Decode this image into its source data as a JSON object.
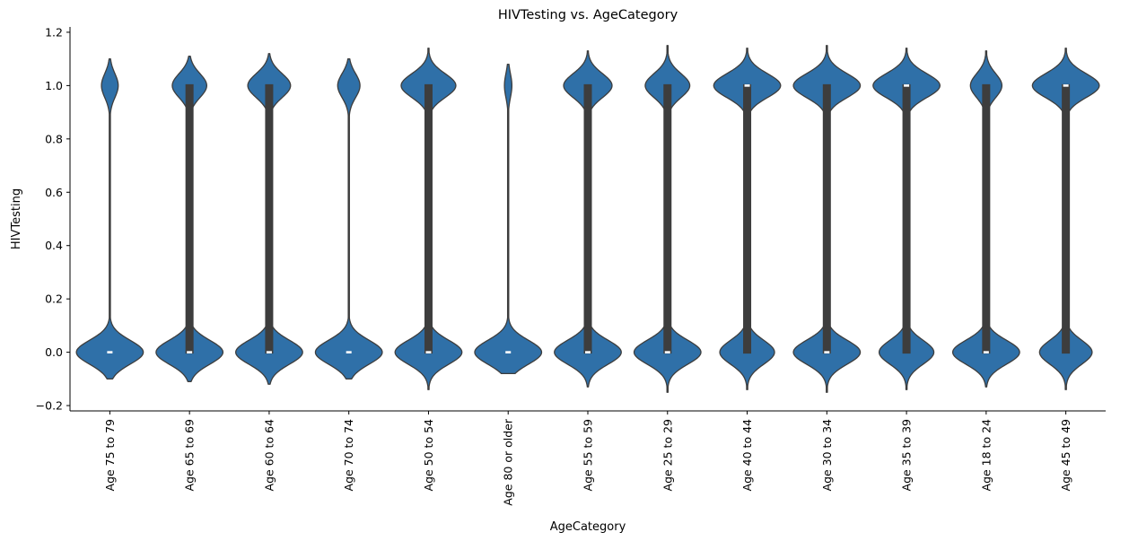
{
  "chart_data": {
    "type": "violin",
    "title": "HIVTesting vs. AgeCategory",
    "xlabel": "AgeCategory",
    "ylabel": "HIVTesting",
    "ylim": [
      -0.22,
      1.22
    ],
    "yticks": [
      -0.2,
      0.0,
      0.2,
      0.4,
      0.6,
      0.8,
      1.0,
      1.2
    ],
    "ytick_labels": [
      "−0.2",
      "0.0",
      "0.2",
      "0.4",
      "0.6",
      "0.8",
      "1.0",
      "1.2"
    ],
    "grid": false,
    "legend": "none",
    "colors": {
      "violin_fill": "#2f70a8",
      "violin_edge": "#3d3d3d",
      "box": "#3d3d3d",
      "median": "#ffffff",
      "axis": "#000000"
    },
    "categories": [
      "Age 75 to 79",
      "Age 65 to 69",
      "Age 60 to 64",
      "Age 70 to 74",
      "Age 50 to 54",
      "Age 80 or older",
      "Age 55 to 59",
      "Age 25 to 29",
      "Age 40 to 44",
      "Age 30 to 34",
      "Age 35 to 39",
      "Age 18 to 24",
      "Age 45 to 49"
    ],
    "series": [
      {
        "category": "Age 75 to 79",
        "p_yes": 0.2,
        "y_min": -0.1,
        "y_max": 1.1,
        "q1": 0,
        "median": 0,
        "q3": 0
      },
      {
        "category": "Age 65 to 69",
        "p_yes": 0.34,
        "y_min": -0.11,
        "y_max": 1.11,
        "q1": 0,
        "median": 0,
        "q3": 1
      },
      {
        "category": "Age 60 to 64",
        "p_yes": 0.39,
        "y_min": -0.12,
        "y_max": 1.12,
        "q1": 0,
        "median": 0,
        "q3": 1
      },
      {
        "category": "Age 70 to 74",
        "p_yes": 0.25,
        "y_min": -0.1,
        "y_max": 1.1,
        "q1": 0,
        "median": 0,
        "q3": 0
      },
      {
        "category": "Age 50 to 54",
        "p_yes": 0.45,
        "y_min": -0.14,
        "y_max": 1.14,
        "q1": 0,
        "median": 0,
        "q3": 1
      },
      {
        "category": "Age 80 or older",
        "p_yes": 0.1,
        "y_min": -0.08,
        "y_max": 1.08,
        "q1": 0,
        "median": 0,
        "q3": 0
      },
      {
        "category": "Age 55 to 59",
        "p_yes": 0.42,
        "y_min": -0.13,
        "y_max": 1.13,
        "q1": 0,
        "median": 0,
        "q3": 1
      },
      {
        "category": "Age 25 to 29",
        "p_yes": 0.4,
        "y_min": -0.15,
        "y_max": 1.15,
        "q1": 0,
        "median": 0,
        "q3": 1
      },
      {
        "category": "Age 40 to 44",
        "p_yes": 0.55,
        "y_min": -0.14,
        "y_max": 1.14,
        "q1": 0,
        "median": 1,
        "q3": 1
      },
      {
        "category": "Age 30 to 34",
        "p_yes": 0.5,
        "y_min": -0.15,
        "y_max": 1.15,
        "q1": 0,
        "median": 0,
        "q3": 1
      },
      {
        "category": "Age 35 to 39",
        "p_yes": 0.55,
        "y_min": -0.14,
        "y_max": 1.14,
        "q1": 0,
        "median": 1,
        "q3": 1
      },
      {
        "category": "Age 18 to 24",
        "p_yes": 0.32,
        "y_min": -0.13,
        "y_max": 1.13,
        "q1": 0,
        "median": 0,
        "q3": 1
      },
      {
        "category": "Age 45 to 49",
        "p_yes": 0.56,
        "y_min": -0.14,
        "y_max": 1.14,
        "q1": 0,
        "median": 1,
        "q3": 1
      }
    ]
  }
}
